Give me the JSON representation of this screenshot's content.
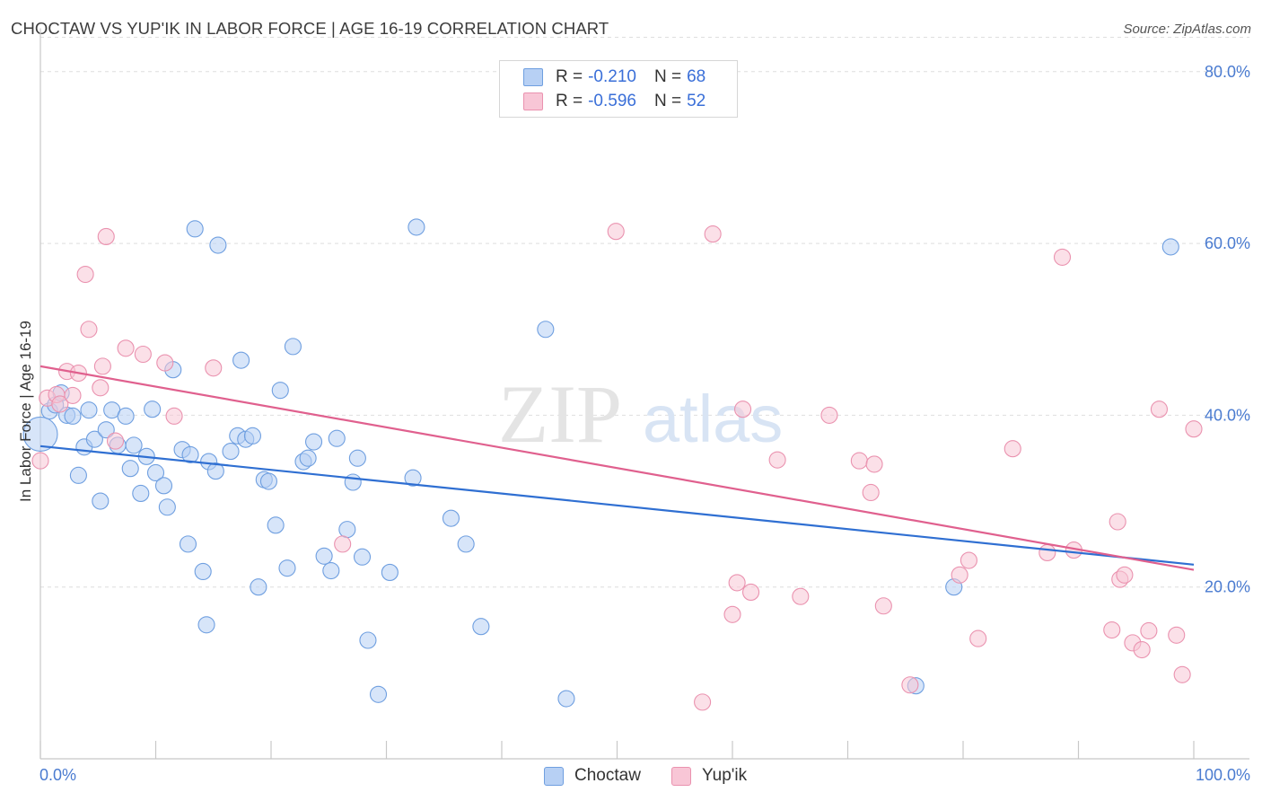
{
  "title": "CHOCTAW VS YUP'IK IN LABOR FORCE | AGE 16-19 CORRELATION CHART",
  "source": "Source: ZipAtlas.com",
  "watermark": {
    "zip": "ZIP",
    "atlas": "atlas"
  },
  "legend": {
    "choctaw": {
      "r_label": "R =",
      "r_value": "-0.210",
      "n_label": "N =",
      "n_value": "68"
    },
    "yupik": {
      "r_label": "R =",
      "r_value": "-0.596",
      "n_label": "N =",
      "n_value": "52"
    }
  },
  "bottom_legend": {
    "choctaw": "Choctaw",
    "yupik": "Yup'ik"
  },
  "colors": {
    "choctaw_fill": "#b7d0f4",
    "choctaw_stroke": "#6f9fe0",
    "choctaw_line": "#2f6fd2",
    "yupik_fill": "#f8c6d6",
    "yupik_stroke": "#ea92af",
    "yupik_line": "#e0608e",
    "tick_text": "#4a7bd0",
    "grid": "#dedede"
  },
  "chart_data": {
    "type": "scatter",
    "title": "CHOCTAW VS YUP'IK IN LABOR FORCE | AGE 16-19 CORRELATION CHART",
    "xlabel": "",
    "ylabel": "In Labor Force | Age 16-19",
    "xlim": [
      0,
      100
    ],
    "ylim": [
      0,
      84
    ],
    "x_tick_labels": [
      "0.0%",
      "100.0%"
    ],
    "y_ticks": [
      20,
      40,
      60,
      80
    ],
    "y_tick_labels": [
      "20.0%",
      "40.0%",
      "60.0%",
      "80.0%"
    ],
    "grid": "horizontal dashed",
    "series": [
      {
        "name": "Choctaw",
        "r": -0.21,
        "n": 68,
        "trend": {
          "x": [
            0,
            100
          ],
          "y": [
            36.4,
            22.6
          ]
        },
        "points": [
          {
            "x": 0.0,
            "y": 37.8
          },
          {
            "x": 0.8,
            "y": 40.5
          },
          {
            "x": 1.3,
            "y": 41.2
          },
          {
            "x": 1.8,
            "y": 42.6
          },
          {
            "x": 2.3,
            "y": 40.0
          },
          {
            "x": 2.8,
            "y": 39.9
          },
          {
            "x": 3.3,
            "y": 33.0
          },
          {
            "x": 3.8,
            "y": 36.3
          },
          {
            "x": 4.2,
            "y": 40.6
          },
          {
            "x": 4.7,
            "y": 37.2
          },
          {
            "x": 5.2,
            "y": 30.0
          },
          {
            "x": 5.7,
            "y": 38.3
          },
          {
            "x": 6.2,
            "y": 40.6
          },
          {
            "x": 6.7,
            "y": 36.5
          },
          {
            "x": 7.4,
            "y": 39.9
          },
          {
            "x": 7.8,
            "y": 33.8
          },
          {
            "x": 8.1,
            "y": 36.5
          },
          {
            "x": 8.7,
            "y": 30.9
          },
          {
            "x": 9.2,
            "y": 35.2
          },
          {
            "x": 9.7,
            "y": 40.7
          },
          {
            "x": 10.0,
            "y": 33.3
          },
          {
            "x": 10.7,
            "y": 31.8
          },
          {
            "x": 11.0,
            "y": 29.3
          },
          {
            "x": 11.5,
            "y": 45.3
          },
          {
            "x": 12.3,
            "y": 36.0
          },
          {
            "x": 12.8,
            "y": 25.0
          },
          {
            "x": 13.0,
            "y": 35.4
          },
          {
            "x": 13.4,
            "y": 61.7
          },
          {
            "x": 14.1,
            "y": 21.8
          },
          {
            "x": 14.4,
            "y": 15.6
          },
          {
            "x": 14.6,
            "y": 34.6
          },
          {
            "x": 15.2,
            "y": 33.5
          },
          {
            "x": 15.4,
            "y": 59.8
          },
          {
            "x": 16.5,
            "y": 35.8
          },
          {
            "x": 17.1,
            "y": 37.6
          },
          {
            "x": 17.4,
            "y": 46.4
          },
          {
            "x": 17.8,
            "y": 37.2
          },
          {
            "x": 18.4,
            "y": 37.6
          },
          {
            "x": 18.9,
            "y": 20.0
          },
          {
            "x": 19.4,
            "y": 32.5
          },
          {
            "x": 19.8,
            "y": 32.3
          },
          {
            "x": 20.4,
            "y": 27.2
          },
          {
            "x": 20.8,
            "y": 42.9
          },
          {
            "x": 21.4,
            "y": 22.2
          },
          {
            "x": 21.9,
            "y": 48.0
          },
          {
            "x": 22.8,
            "y": 34.6
          },
          {
            "x": 23.2,
            "y": 35.0
          },
          {
            "x": 23.7,
            "y": 36.9
          },
          {
            "x": 24.6,
            "y": 23.6
          },
          {
            "x": 25.2,
            "y": 21.9
          },
          {
            "x": 25.7,
            "y": 37.3
          },
          {
            "x": 26.6,
            "y": 26.7
          },
          {
            "x": 27.1,
            "y": 32.2
          },
          {
            "x": 27.5,
            "y": 35.0
          },
          {
            "x": 27.9,
            "y": 23.5
          },
          {
            "x": 28.4,
            "y": 13.8
          },
          {
            "x": 29.3,
            "y": 7.5
          },
          {
            "x": 30.3,
            "y": 21.7
          },
          {
            "x": 32.3,
            "y": 32.7
          },
          {
            "x": 32.6,
            "y": 61.9
          },
          {
            "x": 35.6,
            "y": 28.0
          },
          {
            "x": 36.9,
            "y": 25.0
          },
          {
            "x": 38.2,
            "y": 15.4
          },
          {
            "x": 43.8,
            "y": 50.0
          },
          {
            "x": 45.6,
            "y": 7.0
          },
          {
            "x": 75.9,
            "y": 8.5
          },
          {
            "x": 79.2,
            "y": 20.0
          },
          {
            "x": 98.0,
            "y": 59.6
          }
        ]
      },
      {
        "name": "Yup'ik",
        "r": -0.596,
        "n": 52,
        "trend": {
          "x": [
            0,
            100
          ],
          "y": [
            45.7,
            22.0
          ]
        },
        "points": [
          {
            "x": 0.0,
            "y": 34.7
          },
          {
            "x": 0.6,
            "y": 42.0
          },
          {
            "x": 1.4,
            "y": 42.4
          },
          {
            "x": 1.7,
            "y": 41.3
          },
          {
            "x": 2.3,
            "y": 45.1
          },
          {
            "x": 2.8,
            "y": 42.3
          },
          {
            "x": 3.3,
            "y": 44.9
          },
          {
            "x": 3.9,
            "y": 56.4
          },
          {
            "x": 4.2,
            "y": 50.0
          },
          {
            "x": 5.2,
            "y": 43.2
          },
          {
            "x": 5.4,
            "y": 45.7
          },
          {
            "x": 5.7,
            "y": 60.8
          },
          {
            "x": 6.5,
            "y": 37.0
          },
          {
            "x": 7.4,
            "y": 47.8
          },
          {
            "x": 8.9,
            "y": 47.1
          },
          {
            "x": 10.8,
            "y": 46.1
          },
          {
            "x": 11.6,
            "y": 39.9
          },
          {
            "x": 15.0,
            "y": 45.5
          },
          {
            "x": 26.2,
            "y": 25.0
          },
          {
            "x": 49.9,
            "y": 61.4
          },
          {
            "x": 57.4,
            "y": 6.6
          },
          {
            "x": 58.3,
            "y": 61.1
          },
          {
            "x": 60.0,
            "y": 16.8
          },
          {
            "x": 60.4,
            "y": 20.5
          },
          {
            "x": 60.9,
            "y": 40.7
          },
          {
            "x": 61.6,
            "y": 19.4
          },
          {
            "x": 63.9,
            "y": 34.8
          },
          {
            "x": 65.9,
            "y": 18.9
          },
          {
            "x": 68.4,
            "y": 40.0
          },
          {
            "x": 71.0,
            "y": 34.7
          },
          {
            "x": 72.0,
            "y": 31.0
          },
          {
            "x": 72.3,
            "y": 34.3
          },
          {
            "x": 73.1,
            "y": 17.8
          },
          {
            "x": 75.4,
            "y": 8.6
          },
          {
            "x": 79.7,
            "y": 21.4
          },
          {
            "x": 80.5,
            "y": 23.1
          },
          {
            "x": 81.3,
            "y": 14.0
          },
          {
            "x": 84.3,
            "y": 36.1
          },
          {
            "x": 87.3,
            "y": 24.0
          },
          {
            "x": 88.6,
            "y": 58.4
          },
          {
            "x": 89.6,
            "y": 24.3
          },
          {
            "x": 92.9,
            "y": 15.0
          },
          {
            "x": 93.4,
            "y": 27.6
          },
          {
            "x": 93.6,
            "y": 20.9
          },
          {
            "x": 94.0,
            "y": 21.4
          },
          {
            "x": 94.7,
            "y": 13.5
          },
          {
            "x": 95.5,
            "y": 12.7
          },
          {
            "x": 96.1,
            "y": 14.9
          },
          {
            "x": 97.0,
            "y": 40.7
          },
          {
            "x": 98.5,
            "y": 14.4
          },
          {
            "x": 99.0,
            "y": 9.8
          },
          {
            "x": 100.0,
            "y": 38.4
          }
        ]
      }
    ]
  }
}
